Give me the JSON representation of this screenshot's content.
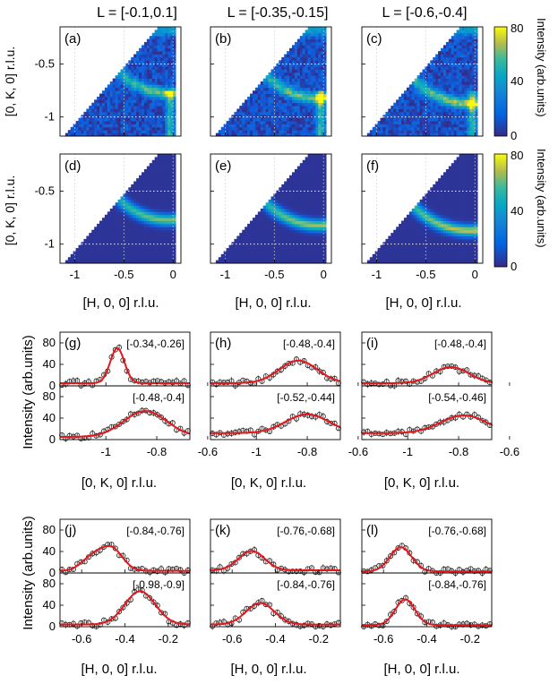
{
  "figure": {
    "column_titles": [
      "L = [-0.1,0.1]",
      "L = [-0.35,-0.15]",
      "L = [-0.6,-0.4]"
    ],
    "colorbar": {
      "ticks": [
        "80",
        "40",
        "0"
      ],
      "label": "Intensity (arb.units)",
      "colormap": "parula"
    }
  },
  "chart_data": [
    {
      "type": "heatmap",
      "panels": [
        {
          "tag": "(a)",
          "kind": "data",
          "L_range": "[-0.1,0.1]"
        },
        {
          "tag": "(b)",
          "kind": "data",
          "L_range": "[-0.35,-0.15]"
        },
        {
          "tag": "(c)",
          "kind": "data",
          "L_range": "[-0.6,-0.4]"
        },
        {
          "tag": "(d)",
          "kind": "model",
          "L_range": "[-0.1,0.1]"
        },
        {
          "tag": "(e)",
          "kind": "model",
          "L_range": "[-0.35,-0.15]"
        },
        {
          "tag": "(f)",
          "kind": "model",
          "L_range": "[-0.6,-0.4]"
        }
      ],
      "xlabel": "[H, 0, 0] r.l.u.",
      "ylabel": "[0, K, 0] r.l.u.",
      "xlim": [
        -1.15,
        0.08
      ],
      "ylim": [
        -1.18,
        -0.15
      ],
      "xticks": [
        -1,
        -0.5,
        0
      ],
      "xtick_labels": [
        "-1",
        "-0.5",
        "0"
      ],
      "yticks": [
        -0.5,
        -1
      ],
      "ytick_labels": [
        "-0.5",
        "-1"
      ],
      "clim": [
        0,
        80
      ],
      "grid": true
    },
    {
      "type": "scatter",
      "description_free": true,
      "xlabel": "[0, K, 0] r.l.u.",
      "ylabel": "Intensity (arb.units)",
      "xlim": [
        -1.18,
        -0.67
      ],
      "ylim": [
        0,
        100
      ],
      "xticks": [
        -1,
        -0.8,
        -0.6
      ],
      "xtick_labels": [
        "-1",
        "-0.8",
        "-0.6"
      ],
      "yticks": [
        0,
        40,
        80
      ],
      "ytick_labels": [
        "0",
        "40",
        "80"
      ],
      "panels": [
        {
          "tag": "(g)",
          "top": {
            "range": "[-0.34,-0.26]",
            "fit": {
              "amp": 65,
              "center": -0.955,
              "width": 0.028,
              "bg": 5
            }
          },
          "bottom": {
            "range": "[-0.48,-0.4]",
            "fit": {
              "amp": 48,
              "center": -0.845,
              "width": 0.085,
              "bg": 5
            }
          }
        },
        {
          "tag": "(h)",
          "top": {
            "range": "[-0.48,-0.4]",
            "fit": {
              "amp": 42,
              "center": -0.835,
              "width": 0.075,
              "bg": 5
            }
          },
          "bottom": {
            "range": "[-0.52,-0.44]",
            "fit": {
              "amp": 35,
              "center": -0.8,
              "width": 0.085,
              "bg": 12
            }
          }
        },
        {
          "tag": "(i)",
          "top": {
            "range": "[-0.48,-0.4]",
            "fit": {
              "amp": 30,
              "center": -0.83,
              "width": 0.07,
              "bg": 5
            }
          },
          "bottom": {
            "range": "[-0.54,-0.46]",
            "fit": {
              "amp": 33,
              "center": -0.78,
              "width": 0.09,
              "bg": 12
            }
          }
        }
      ]
    },
    {
      "type": "scatter",
      "xlabel": "[H, 0, 0] r.l.u.",
      "ylabel": "Intensity (arb.units)",
      "xlim": [
        -0.7,
        -0.1
      ],
      "ylim": [
        0,
        100
      ],
      "xticks": [
        -0.6,
        -0.4,
        -0.2
      ],
      "xtick_labels": [
        "-0.6",
        "-0.4",
        "-0.2"
      ],
      "yticks": [
        0,
        40,
        80
      ],
      "ytick_labels": [
        "0",
        "40",
        "80"
      ],
      "panels": [
        {
          "tag": "(j)",
          "top": {
            "range": "[-0.84,-0.76]",
            "fit": {
              "amp": 40,
              "center": -0.46,
              "width": 0.05,
              "bg": 4,
              "amp2": 25,
              "center2": -0.55
            }
          },
          "bottom": {
            "range": "[-0.98,-0.9]",
            "fit": {
              "amp": 62,
              "center": -0.33,
              "width": 0.07,
              "bg": 4
            }
          }
        },
        {
          "tag": "(k)",
          "top": {
            "range": "[-0.76,-0.68]",
            "fit": {
              "amp": 36,
              "center": -0.51,
              "width": 0.06,
              "bg": 5
            }
          },
          "bottom": {
            "range": "[-0.84,-0.76]",
            "fit": {
              "amp": 40,
              "center": -0.47,
              "width": 0.065,
              "bg": 4
            }
          }
        },
        {
          "tag": "(l)",
          "top": {
            "range": "[-0.76,-0.68]",
            "fit": {
              "amp": 45,
              "center": -0.52,
              "width": 0.05,
              "bg": 3
            }
          },
          "bottom": {
            "range": "[-0.84,-0.76]",
            "fit": {
              "amp": 48,
              "center": -0.5,
              "width": 0.045,
              "bg": 3
            }
          }
        }
      ]
    }
  ]
}
